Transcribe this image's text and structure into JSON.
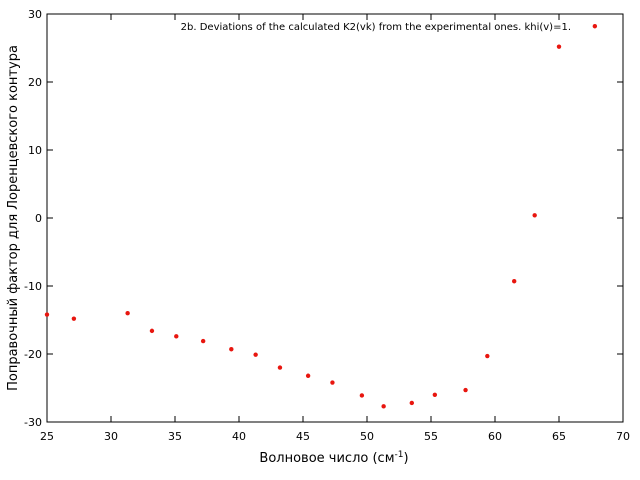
{
  "chart_data": {
    "type": "scatter",
    "title": "2b. Deviations of the calculated K2(vk) from the experimental ones. khi(v)=1.",
    "xlabel": "Волновое число (см",
    "xlabel_sup": "-1",
    "xlabel_close": ")",
    "ylabel": "Поправочный фактор для Лоренцевского контура",
    "xlim": [
      25,
      70
    ],
    "ylim": [
      -30,
      30
    ],
    "xticks": [
      25,
      30,
      35,
      40,
      45,
      50,
      55,
      60,
      65,
      70
    ],
    "yticks": [
      -30,
      -20,
      -10,
      0,
      10,
      20,
      30
    ],
    "grid": false,
    "marker_color": "#e8160f",
    "series": [
      {
        "points": [
          [
            25.0,
            -14.2
          ],
          [
            27.1,
            -14.8
          ],
          [
            31.3,
            -14.0
          ],
          [
            33.2,
            -16.6
          ],
          [
            35.1,
            -17.4
          ],
          [
            37.2,
            -18.1
          ],
          [
            39.4,
            -19.3
          ],
          [
            41.3,
            -20.1
          ],
          [
            43.2,
            -22.0
          ],
          [
            45.4,
            -23.2
          ],
          [
            47.3,
            -24.2
          ],
          [
            49.6,
            -26.1
          ],
          [
            51.3,
            -27.7
          ],
          [
            53.5,
            -27.2
          ],
          [
            55.3,
            -26.0
          ],
          [
            57.7,
            -25.3
          ],
          [
            59.4,
            -20.3
          ],
          [
            61.5,
            -9.3
          ],
          [
            63.1,
            0.4
          ],
          [
            65.0,
            25.2
          ],
          [
            67.8,
            28.2
          ]
        ]
      }
    ]
  }
}
